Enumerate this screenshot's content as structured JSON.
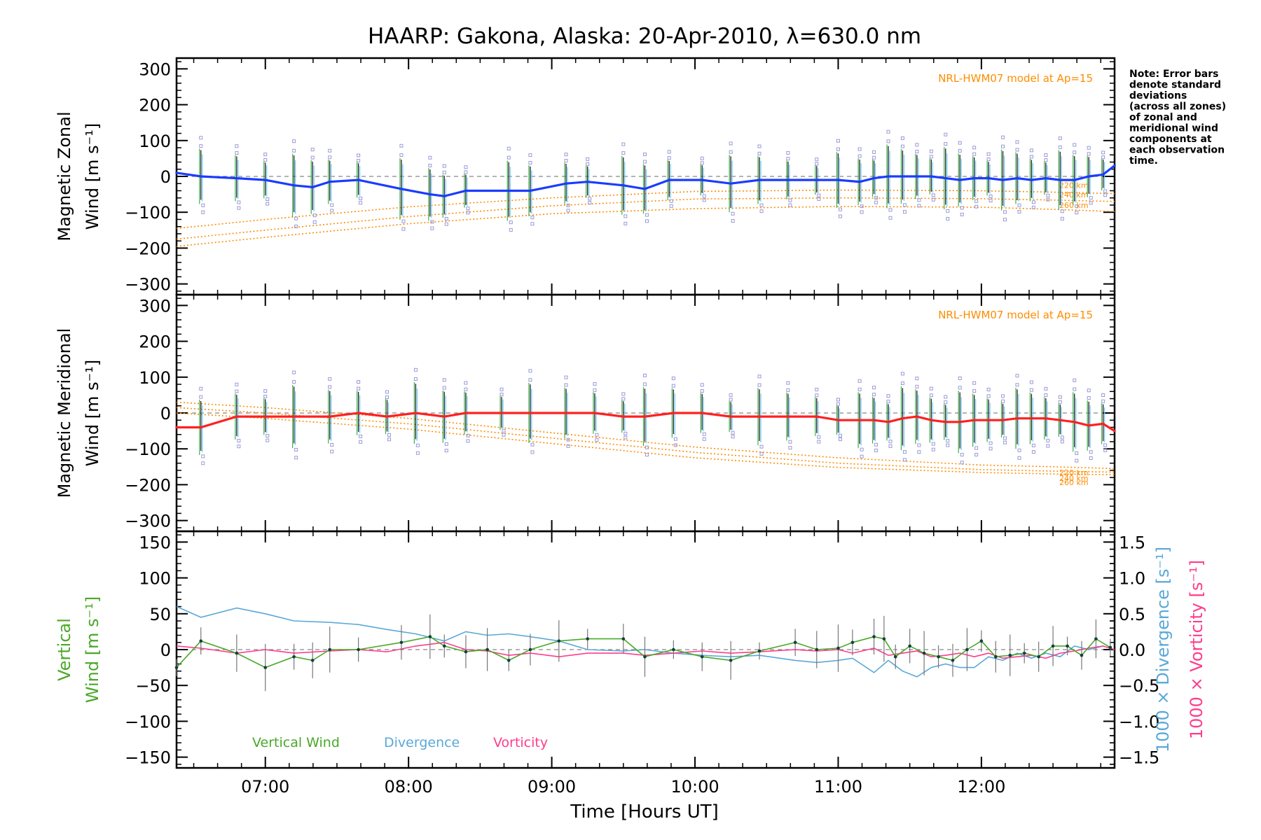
{
  "chart_data": {
    "type": "line",
    "title": "HAARP: Gakona,  Alaska: 20-Apr-2010, λ=630.0 nm",
    "note_lines": [
      "Note: Error bars",
      "denote standard",
      "deviations",
      "(across all zones)",
      "of zonal and",
      "meridional wind",
      "components at",
      "each observation",
      "time."
    ],
    "x_axis": {
      "label": "Time [Hours UT]",
      "range": [
        6.38,
        12.93
      ],
      "ticks": [
        7,
        8,
        9,
        10,
        11,
        12
      ],
      "tick_labels": [
        "07:00",
        "08:00",
        "09:00",
        "10:00",
        "11:00",
        "12:00"
      ]
    },
    "zonal_panel": {
      "ylabel_lines": [
        "Magnetic Zonal",
        "Wind [m s⁻¹]"
      ],
      "ylim": [
        -330,
        330
      ],
      "yticks": [
        300,
        200,
        100,
        0,
        -100,
        -200,
        -300
      ],
      "ytick_labels": [
        "300",
        "200",
        "100",
        "0",
        "−100",
        "−200",
        "−300"
      ],
      "model_label": "NRL-HWM07 model at Ap=15",
      "model_series": [
        {
          "name": "220 km",
          "x": [
            6.38,
            7,
            8,
            9,
            10,
            11,
            12,
            12.5,
            12.93
          ],
          "y": [
            -145,
            -120,
            -85,
            -60,
            -42,
            -38,
            -40,
            -44,
            -48
          ]
        },
        {
          "name": "240 km",
          "x": [
            6.38,
            7,
            8,
            9,
            10,
            11,
            12,
            12.5,
            12.93
          ],
          "y": [
            -175,
            -150,
            -112,
            -82,
            -63,
            -60,
            -62,
            -66,
            -70
          ]
        },
        {
          "name": "260 km",
          "x": [
            6.38,
            7,
            8,
            9,
            10,
            11,
            12,
            12.5,
            12.93
          ],
          "y": [
            -195,
            -170,
            -132,
            -104,
            -90,
            -84,
            -86,
            -92,
            -98
          ]
        }
      ],
      "series": [
        {
          "name": "Zonal wind",
          "color": "#1a3cff",
          "x": [
            6.38,
            6.55,
            6.8,
            7.0,
            7.2,
            7.33,
            7.45,
            7.65,
            7.95,
            8.15,
            8.25,
            8.4,
            8.7,
            8.85,
            9.1,
            9.25,
            9.5,
            9.65,
            9.82,
            10.05,
            10.25,
            10.45,
            10.65,
            10.85,
            11.0,
            11.15,
            11.25,
            11.35,
            11.45,
            11.55,
            11.65,
            11.75,
            11.85,
            11.95,
            12.05,
            12.15,
            12.25,
            12.35,
            12.45,
            12.55,
            12.65,
            12.75,
            12.85,
            12.93
          ],
          "y": [
            10,
            0,
            -5,
            -10,
            -25,
            -30,
            -15,
            -10,
            -35,
            -50,
            -55,
            -40,
            -40,
            -40,
            -20,
            -15,
            -25,
            -35,
            -10,
            -10,
            -20,
            -10,
            -10,
            -10,
            -10,
            -15,
            -5,
            0,
            0,
            0,
            0,
            -5,
            -10,
            -5,
            -5,
            -10,
            -5,
            -10,
            -5,
            -10,
            -10,
            0,
            5,
            30
          ]
        }
      ]
    },
    "meridional_panel": {
      "ylabel_lines": [
        "Magnetic Meridional",
        "Wind [m s⁻¹]"
      ],
      "ylim": [
        -330,
        330
      ],
      "yticks": [
        300,
        200,
        100,
        0,
        -100,
        -200,
        -300
      ],
      "ytick_labels": [
        "300",
        "200",
        "100",
        "0",
        "−100",
        "−200",
        "−300"
      ],
      "model_label": "NRL-HWM07 model at Ap=15",
      "model_series": [
        {
          "name": "220 km",
          "x": [
            6.38,
            7,
            8,
            9,
            10,
            11,
            12,
            12.5,
            12.93
          ],
          "y": [
            30,
            15,
            -15,
            -55,
            -95,
            -125,
            -145,
            -150,
            -155
          ]
        },
        {
          "name": "240 km",
          "x": [
            6.38,
            7,
            8,
            9,
            10,
            11,
            12,
            12.5,
            12.93
          ],
          "y": [
            15,
            0,
            -30,
            -70,
            -110,
            -140,
            -158,
            -162,
            -165
          ]
        },
        {
          "name": "260 km",
          "x": [
            6.38,
            7,
            8,
            9,
            10,
            11,
            12,
            12.5,
            12.93
          ],
          "y": [
            0,
            -15,
            -45,
            -85,
            -125,
            -152,
            -166,
            -170,
            -172
          ]
        }
      ],
      "series": [
        {
          "name": "Meridional wind",
          "color": "#ff2020",
          "x": [
            6.38,
            6.55,
            6.8,
            7.0,
            7.2,
            7.45,
            7.65,
            7.85,
            8.05,
            8.25,
            8.4,
            8.65,
            8.85,
            9.1,
            9.3,
            9.5,
            9.65,
            9.85,
            10.05,
            10.25,
            10.45,
            10.65,
            10.85,
            11.0,
            11.15,
            11.25,
            11.35,
            11.45,
            11.55,
            11.65,
            11.75,
            11.85,
            11.95,
            12.05,
            12.15,
            12.25,
            12.35,
            12.45,
            12.55,
            12.65,
            12.75,
            12.85,
            12.93
          ],
          "y": [
            -40,
            -40,
            -10,
            -10,
            -10,
            -10,
            0,
            -10,
            0,
            -10,
            0,
            0,
            0,
            0,
            0,
            -10,
            -10,
            0,
            0,
            -10,
            -10,
            -10,
            -10,
            -20,
            -20,
            -20,
            -25,
            -15,
            -10,
            -20,
            -25,
            -25,
            -20,
            -20,
            -20,
            -15,
            -15,
            -15,
            -20,
            -25,
            -35,
            -30,
            -50
          ]
        }
      ]
    },
    "vertical_panel": {
      "ylabel_lines": [
        "Vertical",
        "Wind [m s⁻¹]"
      ],
      "ylim": [
        -165,
        165
      ],
      "yticks": [
        150,
        100,
        50,
        0,
        -50,
        -100,
        -150
      ],
      "ytick_labels": [
        "150",
        "100",
        "50",
        "0",
        "−50",
        "−100",
        "−150"
      ],
      "y2_label_divergence": "1000 × Divergence [s⁻¹]",
      "y2_label_vorticity": "1000 × Vorticity [s⁻¹]",
      "y2lim": [
        -1.65,
        1.65
      ],
      "y2ticks": [
        1.5,
        1.0,
        0.5,
        0.0,
        -0.5,
        -1.0,
        -1.5
      ],
      "y2tick_labels": [
        "1.5",
        "1.0",
        "0.5",
        "0.0",
        "−0.5",
        "−1.0",
        "−1.5"
      ],
      "legend": [
        "Vertical Wind",
        "Divergence",
        "Vorticity"
      ],
      "series": [
        {
          "name": "Vertical Wind",
          "color": "#4aa828",
          "axis": "left",
          "x": [
            6.38,
            6.55,
            6.8,
            7.0,
            7.2,
            7.33,
            7.45,
            7.65,
            7.95,
            8.15,
            8.25,
            8.4,
            8.55,
            8.7,
            8.85,
            9.05,
            9.25,
            9.5,
            9.65,
            9.85,
            10.05,
            10.25,
            10.45,
            10.7,
            10.85,
            11.0,
            11.1,
            11.25,
            11.32,
            11.4,
            11.5,
            11.6,
            11.7,
            11.8,
            11.9,
            12.0,
            12.1,
            12.2,
            12.3,
            12.4,
            12.5,
            12.6,
            12.7,
            12.8,
            12.9
          ],
          "y": [
            -25,
            12,
            -5,
            -25,
            -10,
            -15,
            0,
            0,
            10,
            18,
            5,
            -3,
            0,
            -15,
            0,
            12,
            15,
            15,
            -10,
            0,
            -10,
            -15,
            -2,
            10,
            0,
            2,
            10,
            18,
            15,
            -10,
            5,
            -5,
            -10,
            -15,
            0,
            12,
            -10,
            -8,
            -5,
            -10,
            5,
            5,
            -8,
            15,
            3
          ]
        },
        {
          "name": "Divergence",
          "color": "#5aa8d8",
          "axis": "right",
          "x": [
            6.38,
            6.55,
            6.8,
            7.0,
            7.2,
            7.45,
            7.65,
            7.85,
            8.05,
            8.25,
            8.4,
            8.55,
            8.7,
            8.85,
            9.05,
            9.25,
            9.5,
            9.65,
            9.85,
            10.05,
            10.25,
            10.45,
            10.7,
            10.85,
            11.0,
            11.1,
            11.25,
            11.35,
            11.45,
            11.55,
            11.65,
            11.75,
            11.85,
            11.95,
            12.05,
            12.15,
            12.25,
            12.35,
            12.45,
            12.55,
            12.65,
            12.75,
            12.85,
            12.93
          ],
          "y": [
            0.6,
            0.45,
            0.58,
            0.5,
            0.4,
            0.38,
            0.35,
            0.28,
            0.22,
            0.12,
            0.25,
            0.2,
            0.22,
            0.18,
            0.12,
            0.0,
            -0.02,
            0.0,
            -0.05,
            -0.08,
            -0.1,
            -0.08,
            -0.15,
            -0.18,
            -0.15,
            -0.12,
            -0.32,
            -0.15,
            -0.3,
            -0.38,
            -0.25,
            -0.2,
            -0.25,
            -0.25,
            -0.1,
            -0.15,
            -0.05,
            -0.12,
            -0.05,
            -0.1,
            0.05,
            0.0,
            0.05,
            0.0
          ]
        },
        {
          "name": "Vorticity",
          "color": "#ff3c8c",
          "axis": "right",
          "x": [
            6.38,
            6.55,
            6.8,
            7.0,
            7.2,
            7.45,
            7.65,
            7.85,
            8.05,
            8.25,
            8.4,
            8.55,
            8.7,
            8.85,
            9.05,
            9.25,
            9.5,
            9.65,
            9.85,
            10.05,
            10.25,
            10.45,
            10.7,
            10.85,
            11.0,
            11.1,
            11.25,
            11.35,
            11.45,
            11.55,
            11.65,
            11.75,
            11.85,
            11.95,
            12.05,
            12.15,
            12.25,
            12.35,
            12.45,
            12.55,
            12.65,
            12.75,
            12.85,
            12.93
          ],
          "y": [
            0.05,
            0.02,
            -0.05,
            0.0,
            -0.05,
            -0.02,
            0.0,
            -0.03,
            0.05,
            0.1,
            0.0,
            -0.02,
            -0.08,
            -0.05,
            -0.1,
            -0.05,
            -0.05,
            -0.08,
            -0.05,
            -0.02,
            -0.05,
            -0.03,
            0.0,
            -0.02,
            0.0,
            -0.05,
            0.02,
            -0.08,
            -0.05,
            -0.02,
            -0.1,
            -0.08,
            -0.05,
            -0.1,
            -0.05,
            -0.12,
            -0.1,
            -0.08,
            -0.12,
            -0.05,
            -0.02,
            0.02,
            0.05,
            0.0
          ]
        }
      ]
    }
  }
}
